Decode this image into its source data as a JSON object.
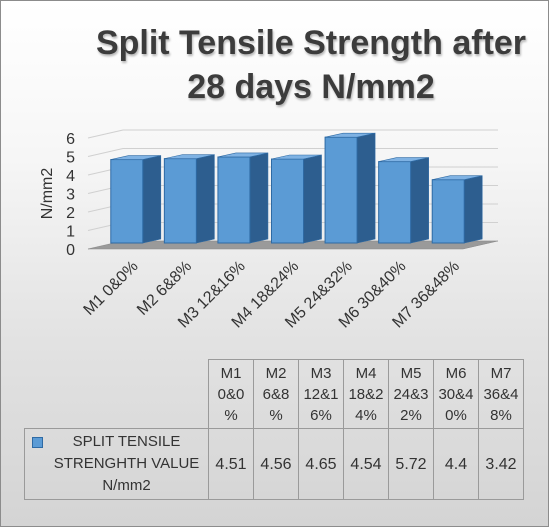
{
  "chart_data": {
    "type": "bar",
    "title_lines": [
      "Split Tensile Strength after",
      "28 days N/mm2"
    ],
    "ylabel": "N/mm2",
    "xlabel": "",
    "ylim": [
      0,
      6
    ],
    "yticks": [
      "0",
      "1",
      "2",
      "3",
      "4",
      "5",
      "6"
    ],
    "categories": [
      "M1 0&0%",
      "M2 6&8%",
      "M3 12&16%",
      "M4 18&24%",
      "M5 24&32%",
      "M6 30&40%",
      "M7 36&48%"
    ],
    "table_headers": [
      [
        "M1",
        "0&0",
        "%"
      ],
      [
        "M2",
        "6&8",
        "%"
      ],
      [
        "M3",
        "12&1",
        "6%"
      ],
      [
        "M4",
        "18&2",
        "4%"
      ],
      [
        "M5",
        "24&3",
        "2%"
      ],
      [
        "M6",
        "30&4",
        "0%"
      ],
      [
        "M7",
        "36&4",
        "8%"
      ]
    ],
    "series": [
      {
        "name_lines": [
          "SPLIT TENSILE",
          "STRENGHTH VALUE",
          "N/mm2"
        ],
        "values": [
          4.51,
          4.56,
          4.65,
          4.54,
          5.72,
          4.4,
          3.42
        ],
        "labels": [
          "4.51",
          "4.56",
          "4.65",
          "4.54",
          "5.72",
          "4.4",
          "3.42"
        ]
      }
    ],
    "colors": {
      "bar": "#5b9bd5",
      "bar_edge": "#2e6aa4",
      "floor": "#9a9a9a"
    },
    "grid": true,
    "style": "3d-column",
    "legend": "data-table"
  }
}
